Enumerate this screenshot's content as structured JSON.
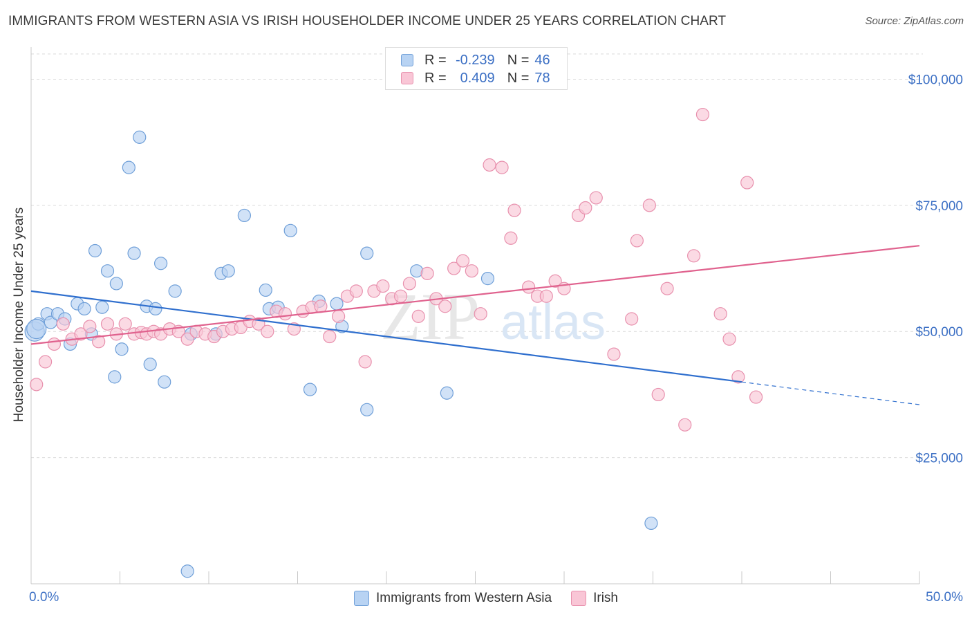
{
  "title": "IMMIGRANTS FROM WESTERN ASIA VS IRISH HOUSEHOLDER INCOME UNDER 25 YEARS CORRELATION CHART",
  "source": "Source: ZipAtlas.com",
  "watermark": {
    "zip": "ZIP",
    "atlas": "atlas"
  },
  "colors": {
    "blue_fill": "#b8d3f3",
    "blue_stroke": "#6f9fd8",
    "blue_line": "#2f6fce",
    "pink_fill": "#f9c6d6",
    "pink_stroke": "#e890ad",
    "pink_line": "#e0628e",
    "axis_label": "#3b6fc4",
    "grid": "#d9d9d9"
  },
  "legend": {
    "blue": {
      "r_label": "R =",
      "r_value": "-0.239",
      "n_label": "N =",
      "n_value": "46"
    },
    "pink": {
      "r_label": "R =",
      "r_value": "0.409",
      "n_label": "N =",
      "n_value": "78"
    }
  },
  "bottom_legend": {
    "blue": "Immigrants from Western Asia",
    "pink": "Irish"
  },
  "chart_data": {
    "type": "scatter",
    "title": "IMMIGRANTS FROM WESTERN ASIA VS IRISH HOUSEHOLDER INCOME UNDER 25 YEARS CORRELATION CHART",
    "xlabel": "",
    "ylabel": "Householder Income Under 25 years",
    "xlim": [
      0,
      50
    ],
    "ylim": [
      0,
      105000
    ],
    "x_tick_labels": [
      "0.0%",
      "50.0%"
    ],
    "y_ticks": [
      25000,
      50000,
      75000,
      100000
    ],
    "y_tick_labels": [
      "$25,000",
      "$50,000",
      "$75,000",
      "$100,000"
    ],
    "series": [
      {
        "name": "Immigrants from Western Asia",
        "color": "blue",
        "points": [
          [
            0.2,
            50000
          ],
          [
            0.4,
            51500
          ],
          [
            0.9,
            53500
          ],
          [
            1.1,
            51800
          ],
          [
            1.5,
            53500
          ],
          [
            1.9,
            52500
          ],
          [
            2.2,
            47500
          ],
          [
            2.6,
            55500
          ],
          [
            3.0,
            54500
          ],
          [
            3.4,
            49500
          ],
          [
            3.6,
            66000
          ],
          [
            4.0,
            54800
          ],
          [
            4.3,
            62000
          ],
          [
            4.8,
            59500
          ],
          [
            4.7,
            41000
          ],
          [
            5.1,
            46500
          ],
          [
            5.5,
            82500
          ],
          [
            5.8,
            65500
          ],
          [
            6.1,
            88500
          ],
          [
            6.5,
            55000
          ],
          [
            6.7,
            43500
          ],
          [
            7.0,
            54500
          ],
          [
            7.3,
            63500
          ],
          [
            7.5,
            40000
          ],
          [
            8.1,
            58000
          ],
          [
            8.8,
            2500
          ],
          [
            9.0,
            49500
          ],
          [
            10.4,
            49500
          ],
          [
            10.7,
            61500
          ],
          [
            11.1,
            62000
          ],
          [
            12.0,
            73000
          ],
          [
            13.2,
            58200
          ],
          [
            13.4,
            54500
          ],
          [
            13.9,
            54800
          ],
          [
            14.6,
            70000
          ],
          [
            15.7,
            38500
          ],
          [
            16.2,
            56000
          ],
          [
            17.2,
            55500
          ],
          [
            17.5,
            51000
          ],
          [
            18.9,
            34500
          ],
          [
            18.9,
            65500
          ],
          [
            21.7,
            62000
          ],
          [
            23.4,
            37800
          ],
          [
            25.7,
            60500
          ],
          [
            34.9,
            12000
          ],
          [
            0.3,
            50500
          ]
        ]
      },
      {
        "name": "Irish",
        "color": "pink",
        "points": [
          [
            0.3,
            39500
          ],
          [
            0.8,
            44000
          ],
          [
            1.3,
            47500
          ],
          [
            1.8,
            51500
          ],
          [
            2.3,
            48500
          ],
          [
            2.8,
            49500
          ],
          [
            3.3,
            51000
          ],
          [
            3.8,
            48000
          ],
          [
            4.3,
            51500
          ],
          [
            4.8,
            49500
          ],
          [
            5.3,
            51500
          ],
          [
            5.8,
            49500
          ],
          [
            6.2,
            49800
          ],
          [
            6.5,
            49500
          ],
          [
            6.9,
            50000
          ],
          [
            7.3,
            49500
          ],
          [
            7.8,
            50500
          ],
          [
            8.3,
            50000
          ],
          [
            8.8,
            48500
          ],
          [
            9.3,
            50000
          ],
          [
            9.8,
            49500
          ],
          [
            10.3,
            49000
          ],
          [
            10.8,
            50000
          ],
          [
            11.3,
            50500
          ],
          [
            11.8,
            50800
          ],
          [
            12.3,
            52000
          ],
          [
            12.8,
            51500
          ],
          [
            13.3,
            50000
          ],
          [
            13.8,
            54000
          ],
          [
            14.3,
            53500
          ],
          [
            14.8,
            50500
          ],
          [
            15.3,
            54000
          ],
          [
            15.8,
            54800
          ],
          [
            16.3,
            55000
          ],
          [
            16.8,
            49000
          ],
          [
            17.3,
            53000
          ],
          [
            17.8,
            57000
          ],
          [
            18.3,
            58000
          ],
          [
            18.8,
            44000
          ],
          [
            19.3,
            58000
          ],
          [
            19.8,
            59000
          ],
          [
            20.3,
            56500
          ],
          [
            20.8,
            57000
          ],
          [
            21.3,
            59500
          ],
          [
            21.8,
            53000
          ],
          [
            22.3,
            61500
          ],
          [
            22.8,
            56500
          ],
          [
            23.3,
            55000
          ],
          [
            23.8,
            62500
          ],
          [
            24.3,
            64000
          ],
          [
            24.8,
            62000
          ],
          [
            25.3,
            53500
          ],
          [
            25.8,
            83000
          ],
          [
            26.5,
            82500
          ],
          [
            27.0,
            68500
          ],
          [
            27.2,
            74000
          ],
          [
            28.0,
            58800
          ],
          [
            28.5,
            57000
          ],
          [
            29.0,
            57000
          ],
          [
            29.5,
            60000
          ],
          [
            30.0,
            58500
          ],
          [
            30.8,
            73000
          ],
          [
            31.2,
            74500
          ],
          [
            31.8,
            76500
          ],
          [
            32.8,
            45500
          ],
          [
            33.8,
            52500
          ],
          [
            34.1,
            68000
          ],
          [
            34.8,
            75000
          ],
          [
            35.3,
            37500
          ],
          [
            35.8,
            58500
          ],
          [
            36.8,
            31500
          ],
          [
            37.3,
            65000
          ],
          [
            37.8,
            93000
          ],
          [
            38.8,
            53500
          ],
          [
            39.3,
            48500
          ],
          [
            39.8,
            41000
          ],
          [
            40.3,
            79500
          ],
          [
            40.8,
            37000
          ]
        ]
      }
    ],
    "trendlines": [
      {
        "series": "Immigrants from Western Asia",
        "x_start": 0,
        "y_start": 58000,
        "x_end": 40,
        "y_end": 40000,
        "dashed_to_x": 50,
        "dashed_to_y": 35500
      },
      {
        "series": "Irish",
        "x_start": 0,
        "y_start": 47500,
        "x_end": 50,
        "y_end": 67000
      }
    ]
  }
}
